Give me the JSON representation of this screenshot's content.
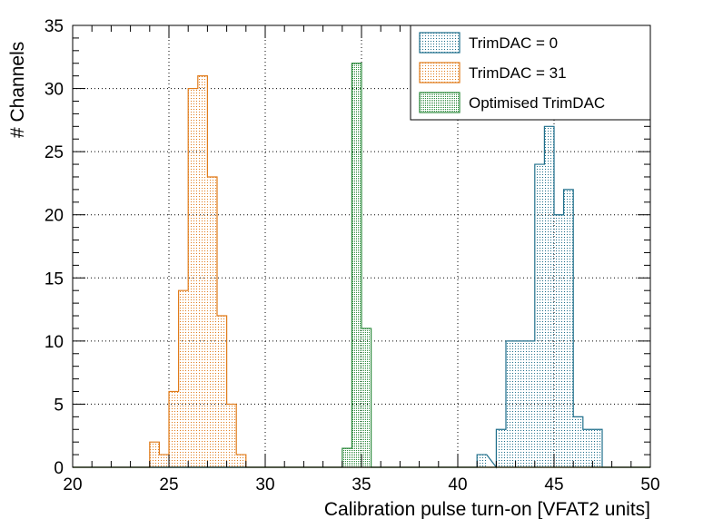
{
  "chart_data": {
    "type": "histogram",
    "title": "",
    "xlabel": "Calibration pulse turn-on [VFAT2 units]",
    "ylabel": "# Channels",
    "xlim": [
      20,
      50
    ],
    "ylim": [
      0,
      35
    ],
    "xticks": [
      20,
      25,
      30,
      35,
      40,
      45,
      50
    ],
    "yticks": [
      0,
      5,
      10,
      15,
      20,
      25,
      30,
      35
    ],
    "grid": true,
    "legend_position": "top-right",
    "bin_width": 0.5,
    "series": [
      {
        "name": "TrimDAC = 0",
        "color": "#1f6f8b",
        "bins": [
          {
            "x": 41,
            "count": 1
          },
          {
            "x": 42,
            "count": 3
          },
          {
            "x": 42.5,
            "count": 10
          },
          {
            "x": 43,
            "count": 10
          },
          {
            "x": 43.5,
            "count": 10
          },
          {
            "x": 44,
            "count": 24
          },
          {
            "x": 44.5,
            "count": 27
          },
          {
            "x": 45,
            "count": 20
          },
          {
            "x": 45.5,
            "count": 22
          },
          {
            "x": 46,
            "count": 4
          },
          {
            "x": 46.5,
            "count": 3
          },
          {
            "x": 47,
            "count": 3
          }
        ]
      },
      {
        "name": "TrimDAC = 31",
        "color": "#e07b1a",
        "bins": [
          {
            "x": 24,
            "count": 2
          },
          {
            "x": 24.5,
            "count": 1
          },
          {
            "x": 25,
            "count": 6
          },
          {
            "x": 25.5,
            "count": 14
          },
          {
            "x": 26,
            "count": 30
          },
          {
            "x": 26.5,
            "count": 31
          },
          {
            "x": 27,
            "count": 23
          },
          {
            "x": 27.5,
            "count": 12
          },
          {
            "x": 28,
            "count": 5
          },
          {
            "x": 28.5,
            "count": 1
          }
        ]
      },
      {
        "name": "Optimised TrimDAC",
        "color": "#2e8b3e",
        "bins": [
          {
            "x": 34,
            "count": 1.5
          },
          {
            "x": 34.5,
            "count": 32
          },
          {
            "x": 35,
            "count": 11
          }
        ]
      }
    ]
  }
}
